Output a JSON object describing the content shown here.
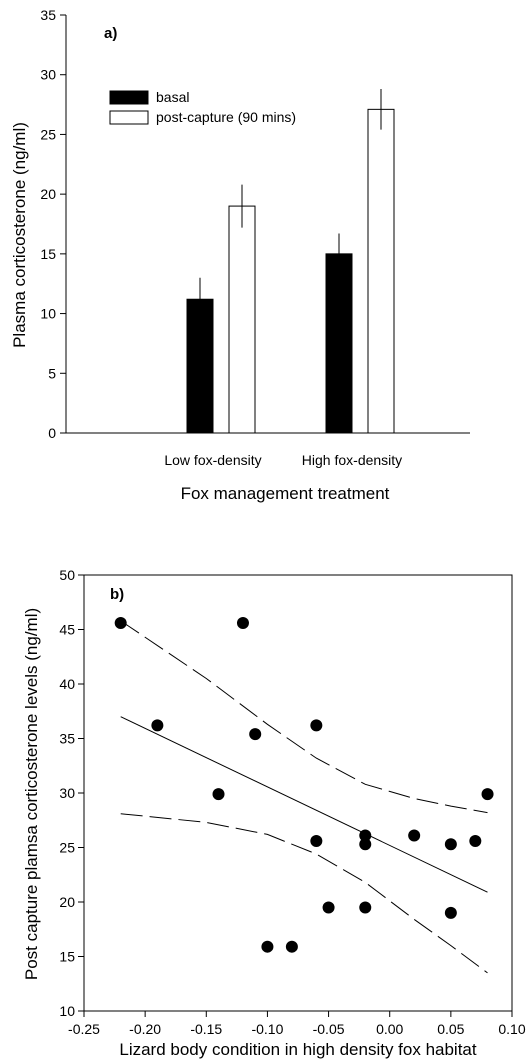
{
  "chart_data": [
    {
      "type": "bar",
      "panel_label": "a)",
      "categories": [
        "Low fox-density",
        "High fox-density"
      ],
      "series": [
        {
          "name": "basal",
          "values": [
            11.2,
            15.0
          ],
          "errors": [
            1.8,
            1.7
          ],
          "fill": "#000000"
        },
        {
          "name": "post-capture (90 mins)",
          "values": [
            19.0,
            27.1
          ],
          "errors": [
            1.8,
            1.7
          ],
          "fill": "#ffffff"
        }
      ],
      "xlabel": "Fox management treatment",
      "ylabel": "Plasma corticosterone (ng/ml)",
      "ylim": [
        0,
        35
      ],
      "yticks": [
        "0",
        "5",
        "10",
        "15",
        "20",
        "25",
        "30",
        "35"
      ],
      "legend_position": "top-left",
      "grid": false
    },
    {
      "type": "scatter",
      "panel_label": "b)",
      "points": [
        {
          "x": -0.22,
          "y": 45.6
        },
        {
          "x": -0.19,
          "y": 36.2
        },
        {
          "x": -0.14,
          "y": 29.9
        },
        {
          "x": -0.12,
          "y": 45.6
        },
        {
          "x": -0.11,
          "y": 35.4
        },
        {
          "x": -0.1,
          "y": 15.9
        },
        {
          "x": -0.08,
          "y": 15.9
        },
        {
          "x": -0.06,
          "y": 36.2
        },
        {
          "x": -0.06,
          "y": 25.6
        },
        {
          "x": -0.05,
          "y": 19.5
        },
        {
          "x": -0.02,
          "y": 26.1
        },
        {
          "x": -0.02,
          "y": 25.3
        },
        {
          "x": -0.02,
          "y": 19.5
        },
        {
          "x": 0.02,
          "y": 26.1
        },
        {
          "x": 0.05,
          "y": 25.3
        },
        {
          "x": 0.05,
          "y": 19.0
        },
        {
          "x": 0.07,
          "y": 25.6
        },
        {
          "x": 0.08,
          "y": 29.9
        }
      ],
      "regression": {
        "x": [
          -0.22,
          0.08
        ],
        "y": [
          37.0,
          20.9
        ]
      },
      "confidence_upper": {
        "x": [
          -0.22,
          -0.15,
          -0.1,
          -0.06,
          -0.02,
          0.02,
          0.05,
          0.08
        ],
        "y": [
          45.8,
          40.5,
          36.3,
          33.2,
          30.8,
          29.5,
          28.8,
          28.2
        ]
      },
      "confidence_lower": {
        "x": [
          -0.22,
          -0.15,
          -0.1,
          -0.06,
          -0.02,
          0.02,
          0.05,
          0.08
        ],
        "y": [
          28.1,
          27.3,
          26.2,
          24.4,
          21.8,
          18.4,
          16.0,
          13.5
        ]
      },
      "xlabel": "Lizard body condition in high density fox habitat",
      "ylabel": "Post capture plamsa corticosterone levels (ng/ml)",
      "xlim": [
        -0.25,
        0.1
      ],
      "ylim": [
        10,
        50
      ],
      "xticks": [
        "-0.25",
        "-0.20",
        "-0.15",
        "-0.10",
        "-0.05",
        "0.00",
        "0.05",
        "0.10"
      ],
      "yticks": [
        "10",
        "15",
        "20",
        "25",
        "30",
        "35",
        "40",
        "45",
        "50"
      ],
      "grid": false
    }
  ]
}
